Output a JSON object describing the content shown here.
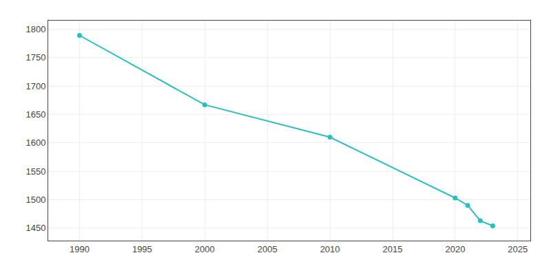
{
  "chart_data": {
    "type": "line",
    "x": [
      1990,
      2000,
      2010,
      2020,
      2021,
      2022,
      2023
    ],
    "values": [
      1789,
      1667,
      1610,
      1503,
      1490,
      1463,
      1454
    ],
    "color": "#29bfbf",
    "marker": "circle",
    "xlim": [
      1987.5,
      2026
    ],
    "ylim": [
      1428,
      1815
    ],
    "xticks": [
      1990,
      1995,
      2000,
      2005,
      2010,
      2015,
      2020,
      2025
    ],
    "yticks": [
      1450,
      1500,
      1550,
      1600,
      1650,
      1700,
      1750,
      1800
    ],
    "grid": true
  }
}
